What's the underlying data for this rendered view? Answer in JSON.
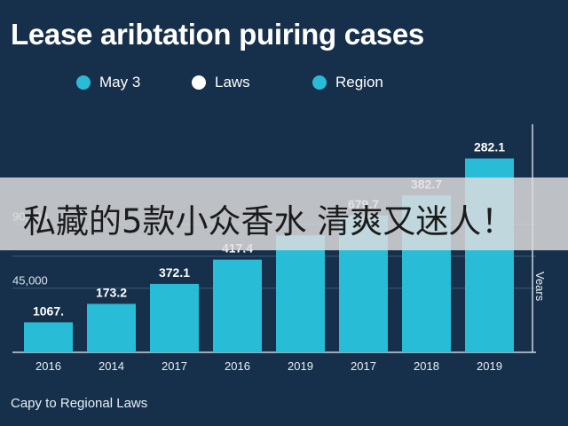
{
  "page": {
    "title": "Lease aribtation puiring cases",
    "source_note": "Capy to Regional Laws",
    "overlay_caption": "私藏的5款小众香水 清爽又迷人！"
  },
  "legend": {
    "items": [
      {
        "label": "May 3",
        "color": "#29bcd6"
      },
      {
        "label": "Laws",
        "color": "#ffffff"
      },
      {
        "label": "Region",
        "color": "#29bcd6"
      }
    ]
  },
  "chart_data": {
    "type": "bar",
    "title": "Lease aribtation puiring cases",
    "categories": [
      "2016",
      "2014",
      "2017",
      "2016",
      "2019",
      "2017",
      "2018",
      "2019"
    ],
    "values": [
      21000,
      34000,
      48000,
      65000,
      82000,
      96000,
      110000,
      136000
    ],
    "data_labels": [
      "1067.",
      "173.2",
      "372.1",
      "417.4",
      "",
      "679.7",
      "382.7",
      "282.1"
    ],
    "ytick_labels": [
      "45,000",
      "",
      "90,000"
    ],
    "ytick_values": [
      45000,
      67500,
      90000
    ],
    "right_axis_label": "Vears",
    "ylim": [
      0,
      160000
    ],
    "bar_color": "#29bcd6",
    "grid": true,
    "legend_position": "top-left"
  }
}
